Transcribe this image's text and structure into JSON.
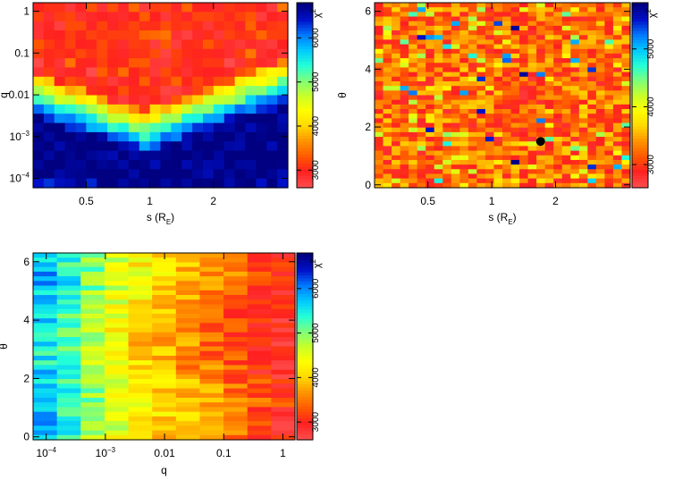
{
  "colorbar_palette": [
    "#ff4b4b",
    "#ff2020",
    "#ff5a00",
    "#ff9400",
    "#ffd800",
    "#ffff00",
    "#c8ff28",
    "#7cff7c",
    "#22ffd8",
    "#00c8ff",
    "#0078ff",
    "#0010c8",
    "#000080"
  ],
  "chart_data": [
    {
      "id": "panel-s-q",
      "type": "heatmap",
      "xlabel": "s (R",
      "xlabel_sub": "E",
      "xlabel_close": ")",
      "ylabel": "q",
      "colorbar_label": "χ²",
      "colorbar_title": "χ",
      "colorbar_superscript": "2",
      "x_scale": "log",
      "xlim": [
        0.28,
        4.5
      ],
      "y_scale": "log",
      "ylim": [
        6e-05,
        1.6
      ],
      "x_ticks": [
        {
          "v": 0.5,
          "label": "0.5"
        },
        {
          "v": 1,
          "label": "1"
        },
        {
          "v": 2,
          "label": "2"
        }
      ],
      "y_ticks": [
        {
          "v": 1,
          "label": "1"
        },
        {
          "v": 0.1,
          "label": "0.1"
        },
        {
          "v": 0.01,
          "label": "0.01"
        },
        {
          "v": 0.001,
          "label": "10",
          "sup": "−3"
        },
        {
          "v": 0.0001,
          "label": "10",
          "sup": "−4"
        }
      ],
      "colorbar_range": [
        2600,
        6800
      ],
      "colorbar_ticks": [
        "3000",
        "4000",
        "5000",
        "6000"
      ],
      "colorbar_tick_values": [
        3000,
        4000,
        5000,
        6000
      ],
      "grid_cols": 24,
      "grid_rows": 20,
      "marker": null
    },
    {
      "id": "panel-s-theta",
      "type": "heatmap",
      "xlabel": "s (R",
      "xlabel_sub": "E",
      "xlabel_close": ")",
      "ylabel": "θ",
      "colorbar_label": "χ²",
      "colorbar_title": "χ",
      "colorbar_superscript": "2",
      "x_scale": "log",
      "xlim": [
        0.28,
        4.5
      ],
      "y_scale": "linear",
      "ylim": [
        -0.1,
        6.3
      ],
      "x_ticks": [
        {
          "v": 0.5,
          "label": "0.5"
        },
        {
          "v": 1,
          "label": "1"
        },
        {
          "v": 2,
          "label": "2"
        }
      ],
      "y_ticks": [
        {
          "v": 0,
          "label": "0"
        },
        {
          "v": 2,
          "label": "2"
        },
        {
          "v": 4,
          "label": "4"
        },
        {
          "v": 6,
          "label": "6"
        }
      ],
      "colorbar_range": [
        2600,
        5800
      ],
      "colorbar_ticks": [
        "3000",
        "4000",
        "5000"
      ],
      "colorbar_tick_values": [
        3000,
        4000,
        5000
      ],
      "grid_cols": 30,
      "grid_rows": 40,
      "marker": {
        "s": 1.7,
        "theta": 1.5
      }
    },
    {
      "id": "panel-q-theta",
      "type": "heatmap",
      "xlabel": "q",
      "xlabel_sub": "",
      "xlabel_close": "",
      "ylabel": "θ",
      "colorbar_label": "χ²",
      "colorbar_title": "χ",
      "colorbar_superscript": "2",
      "x_scale": "log",
      "xlim": [
        6e-05,
        1.6
      ],
      "y_scale": "linear",
      "ylim": [
        -0.1,
        6.3
      ],
      "x_ticks": [
        {
          "v": 0.0001,
          "label": "10",
          "sup": "−4"
        },
        {
          "v": 0.001,
          "label": "10",
          "sup": "−3"
        },
        {
          "v": 0.01,
          "label": "0.01"
        },
        {
          "v": 0.1,
          "label": "0.1"
        },
        {
          "v": 1,
          "label": "1"
        }
      ],
      "y_ticks": [
        {
          "v": 0,
          "label": "0"
        },
        {
          "v": 2,
          "label": "2"
        },
        {
          "v": 4,
          "label": "4"
        },
        {
          "v": 6,
          "label": "6"
        }
      ],
      "colorbar_range": [
        2600,
        6800
      ],
      "colorbar_ticks": [
        "3000",
        "4000",
        "5000",
        "6000"
      ],
      "colorbar_tick_values": [
        3000,
        4000,
        5000,
        6000
      ],
      "grid_cols": 11,
      "grid_rows": 40,
      "marker": null
    }
  ]
}
